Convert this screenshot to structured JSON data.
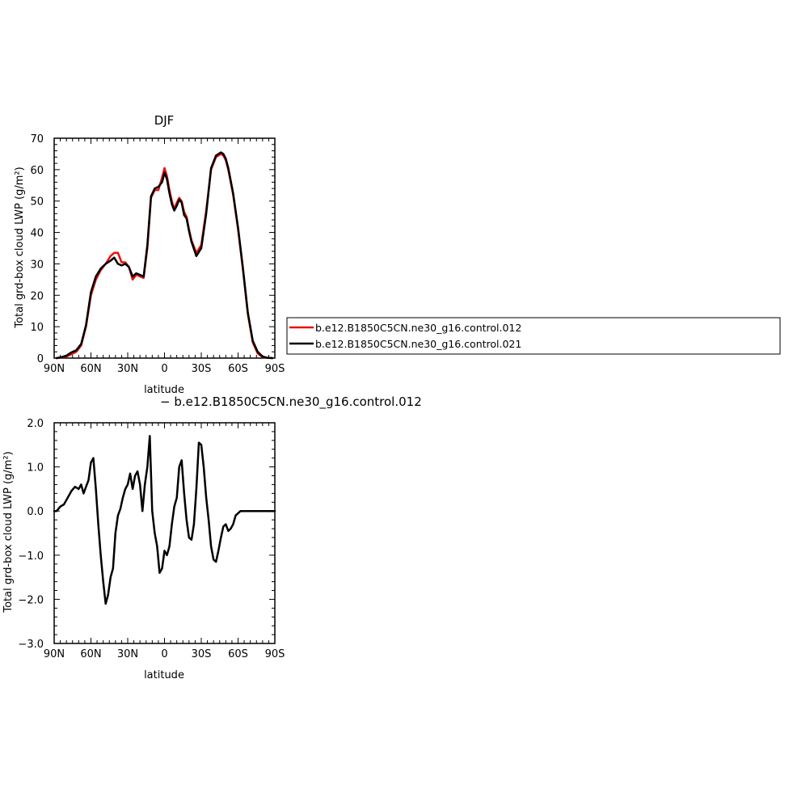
{
  "chart_data": [
    {
      "type": "line",
      "title": "DJF",
      "xlabel": "latitude",
      "ylabel": "Total grd-box cloud LWP (g/m²)",
      "xlim": [
        90,
        -90
      ],
      "ylim": [
        0,
        70
      ],
      "x_ticks": [
        {
          "value": 90,
          "label": "90N"
        },
        {
          "value": 60,
          "label": "60N"
        },
        {
          "value": 30,
          "label": "30N"
        },
        {
          "value": 0,
          "label": "0"
        },
        {
          "value": -30,
          "label": "30S"
        },
        {
          "value": -60,
          "label": "60S"
        },
        {
          "value": -90,
          "label": "90S"
        }
      ],
      "y_ticks": [
        {
          "value": 0,
          "label": "0"
        },
        {
          "value": 10,
          "label": "10"
        },
        {
          "value": 20,
          "label": "20"
        },
        {
          "value": 30,
          "label": "30"
        },
        {
          "value": 40,
          "label": "40"
        },
        {
          "value": 50,
          "label": "50"
        },
        {
          "value": 60,
          "label": "60"
        },
        {
          "value": 70,
          "label": "70"
        }
      ],
      "series": [
        {
          "name": "b.e12.B1850C5CN.ne30_g16.control.012",
          "color": "#e8120c",
          "x": [
            88,
            84,
            80,
            76,
            72,
            68,
            64,
            60,
            56,
            52,
            48,
            44,
            41,
            38,
            35,
            32,
            29,
            26,
            23,
            20,
            17,
            14,
            11,
            8,
            5,
            2,
            0,
            -2,
            -4,
            -6,
            -8,
            -10,
            -12,
            -14,
            -16,
            -18,
            -20,
            -22,
            -26,
            -30,
            -34,
            -38,
            -42,
            -46,
            -48,
            -50,
            -52,
            -56,
            -60,
            -64,
            -68,
            -72,
            -76,
            -80,
            -84,
            -88
          ],
          "y": [
            0,
            0.2,
            0.5,
            1.2,
            2.0,
            4.0,
            10.0,
            20.0,
            25.0,
            28.0,
            30.0,
            32.5,
            33.5,
            33.5,
            30.5,
            30.5,
            29.0,
            25.0,
            26.5,
            26.0,
            25.5,
            35.0,
            51.0,
            53.5,
            53.5,
            57.5,
            60.5,
            58.0,
            53.5,
            50.0,
            47.5,
            49.5,
            51.0,
            50.0,
            46.5,
            45.0,
            41.0,
            37.5,
            33.5,
            36.0,
            47.0,
            60.0,
            64.0,
            65.0,
            64.5,
            63.0,
            60.0,
            52.0,
            41.0,
            28.0,
            14.0,
            5.0,
            1.5,
            0.3,
            0.1,
            0
          ]
        },
        {
          "name": "b.e12.B1850C5CN.ne30_g16.control.021",
          "color": "#000000",
          "x": [
            88,
            84,
            80,
            76,
            72,
            68,
            64,
            60,
            56,
            52,
            48,
            44,
            41,
            38,
            35,
            32,
            29,
            26,
            23,
            20,
            17,
            14,
            11,
            8,
            5,
            2,
            0,
            -2,
            -4,
            -6,
            -8,
            -10,
            -12,
            -14,
            -16,
            -18,
            -20,
            -22,
            -26,
            -30,
            -34,
            -38,
            -42,
            -46,
            -48,
            -50,
            -52,
            -56,
            -60,
            -64,
            -68,
            -72,
            -76,
            -80,
            -84,
            -88
          ],
          "y": [
            0,
            0.3,
            0.8,
            1.8,
            2.5,
            4.5,
            10.5,
            21.0,
            26.0,
            28.5,
            30.0,
            31.0,
            32.0,
            30.0,
            29.5,
            30.0,
            29.0,
            26.0,
            27.0,
            26.5,
            26.0,
            36.0,
            51.5,
            54.0,
            54.5,
            56.0,
            59.0,
            57.0,
            52.5,
            49.0,
            47.0,
            48.5,
            50.5,
            49.5,
            45.5,
            44.5,
            40.5,
            37.0,
            32.5,
            35.0,
            46.0,
            60.5,
            64.5,
            65.5,
            65.0,
            63.5,
            60.5,
            52.5,
            41.5,
            28.5,
            14.5,
            5.5,
            2.0,
            0.5,
            0.1,
            0
          ]
        }
      ],
      "legend": "right"
    },
    {
      "type": "line",
      "title": "− b.e12.B1850C5CN.ne30_g16.control.012",
      "xlabel": "latitude",
      "ylabel": "Total grd-box cloud LWP (g/m²)",
      "xlim": [
        90,
        -90
      ],
      "ylim": [
        -3.0,
        2.0
      ],
      "x_ticks": [
        {
          "value": 90,
          "label": "90N"
        },
        {
          "value": 60,
          "label": "60N"
        },
        {
          "value": 30,
          "label": "30N"
        },
        {
          "value": 0,
          "label": "0"
        },
        {
          "value": -30,
          "label": "30S"
        },
        {
          "value": -60,
          "label": "60S"
        },
        {
          "value": -90,
          "label": "90S"
        }
      ],
      "y_ticks": [
        {
          "value": 2.0,
          "label": "2.0"
        },
        {
          "value": 1.0,
          "label": "1.0"
        },
        {
          "value": 0.0,
          "label": "0.0"
        },
        {
          "value": -1.0,
          "label": "−1.0"
        },
        {
          "value": -2.0,
          "label": "−2.0"
        },
        {
          "value": -3.0,
          "label": "−3.0"
        }
      ],
      "series": [
        {
          "name": "",
          "color": "#000000",
          "x": [
            90,
            88,
            85,
            82,
            79,
            76,
            73,
            70,
            68,
            66,
            64,
            62,
            60,
            58,
            56,
            54,
            52,
            50,
            48,
            46,
            44,
            42,
            40,
            38,
            36,
            34,
            32,
            30,
            28,
            26,
            24,
            22,
            20,
            18,
            16,
            14,
            12,
            10,
            8,
            6,
            4,
            2,
            0,
            -2,
            -4,
            -6,
            -8,
            -10,
            -12,
            -14,
            -16,
            -18,
            -20,
            -22,
            -24,
            -26,
            -28,
            -30,
            -32,
            -34,
            -36,
            -38,
            -40,
            -42,
            -44,
            -46,
            -48,
            -50,
            -52,
            -54,
            -56,
            -58,
            -60,
            -62,
            -64,
            -66,
            -68,
            -70,
            -72,
            -74,
            -76,
            -78,
            -80,
            -82,
            -84,
            -86,
            -88,
            -90
          ],
          "y": [
            0.0,
            0.0,
            0.1,
            0.15,
            0.3,
            0.45,
            0.55,
            0.5,
            0.6,
            0.4,
            0.55,
            0.7,
            1.1,
            1.2,
            0.5,
            -0.3,
            -1.0,
            -1.6,
            -2.1,
            -1.9,
            -1.5,
            -1.3,
            -0.5,
            -0.1,
            0.05,
            0.3,
            0.5,
            0.6,
            0.85,
            0.5,
            0.8,
            0.9,
            0.6,
            0.0,
            0.6,
            1.0,
            1.7,
            0.0,
            -0.5,
            -0.8,
            -1.4,
            -1.3,
            -0.9,
            -1.0,
            -0.8,
            -0.3,
            0.1,
            0.3,
            1.0,
            1.15,
            0.4,
            -0.2,
            -0.6,
            -0.65,
            -0.3,
            0.5,
            1.55,
            1.5,
            1.0,
            0.3,
            -0.2,
            -0.8,
            -1.1,
            -1.15,
            -0.9,
            -0.6,
            -0.35,
            -0.3,
            -0.45,
            -0.4,
            -0.3,
            -0.1,
            -0.05,
            0.0,
            0.0,
            0.0,
            0.0,
            0.0,
            0.0,
            0.0,
            0.0,
            0.0,
            0.0,
            0.0,
            0.0,
            0.0,
            0.0,
            0.0
          ]
        }
      ]
    }
  ]
}
